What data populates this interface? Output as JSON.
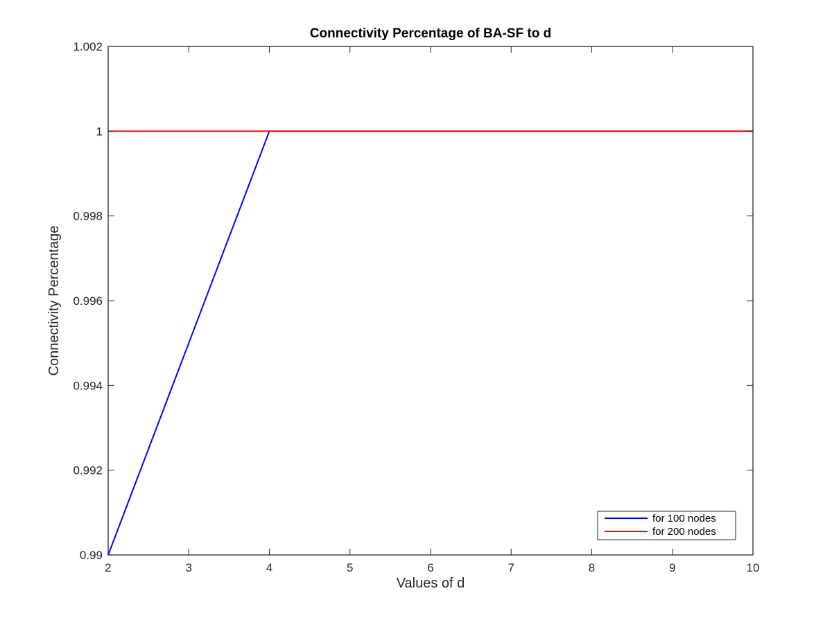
{
  "chart_data": {
    "type": "line",
    "title": "Connectivity Percentage of BA-SF to d",
    "xlabel": "Values of d",
    "ylabel": "Connectivity Percentage",
    "xlim": [
      2,
      10
    ],
    "ylim": [
      0.99,
      1.002
    ],
    "x_ticks": [
      2,
      3,
      4,
      5,
      6,
      7,
      8,
      9,
      10
    ],
    "y_ticks": [
      0.99,
      0.992,
      0.994,
      0.996,
      0.998,
      1,
      1.002
    ],
    "y_tick_labels": [
      "0.99",
      "0.992",
      "0.994",
      "0.996",
      "0.998",
      "1",
      "1.002"
    ],
    "grid": false,
    "legend_position": "bottom-right",
    "series": [
      {
        "name": "for 100 nodes",
        "color": "#0000ff",
        "x": [
          2,
          3,
          4,
          5,
          6,
          7,
          8,
          9,
          10
        ],
        "y": [
          0.99,
          0.995,
          1,
          1,
          1,
          1,
          1,
          1,
          1
        ]
      },
      {
        "name": "for 200 nodes",
        "color": "#ff0000",
        "x": [
          2,
          3,
          4,
          5,
          6,
          7,
          8,
          9,
          10
        ],
        "y": [
          1,
          1,
          1,
          1,
          1,
          1,
          1,
          1,
          1
        ]
      }
    ]
  }
}
